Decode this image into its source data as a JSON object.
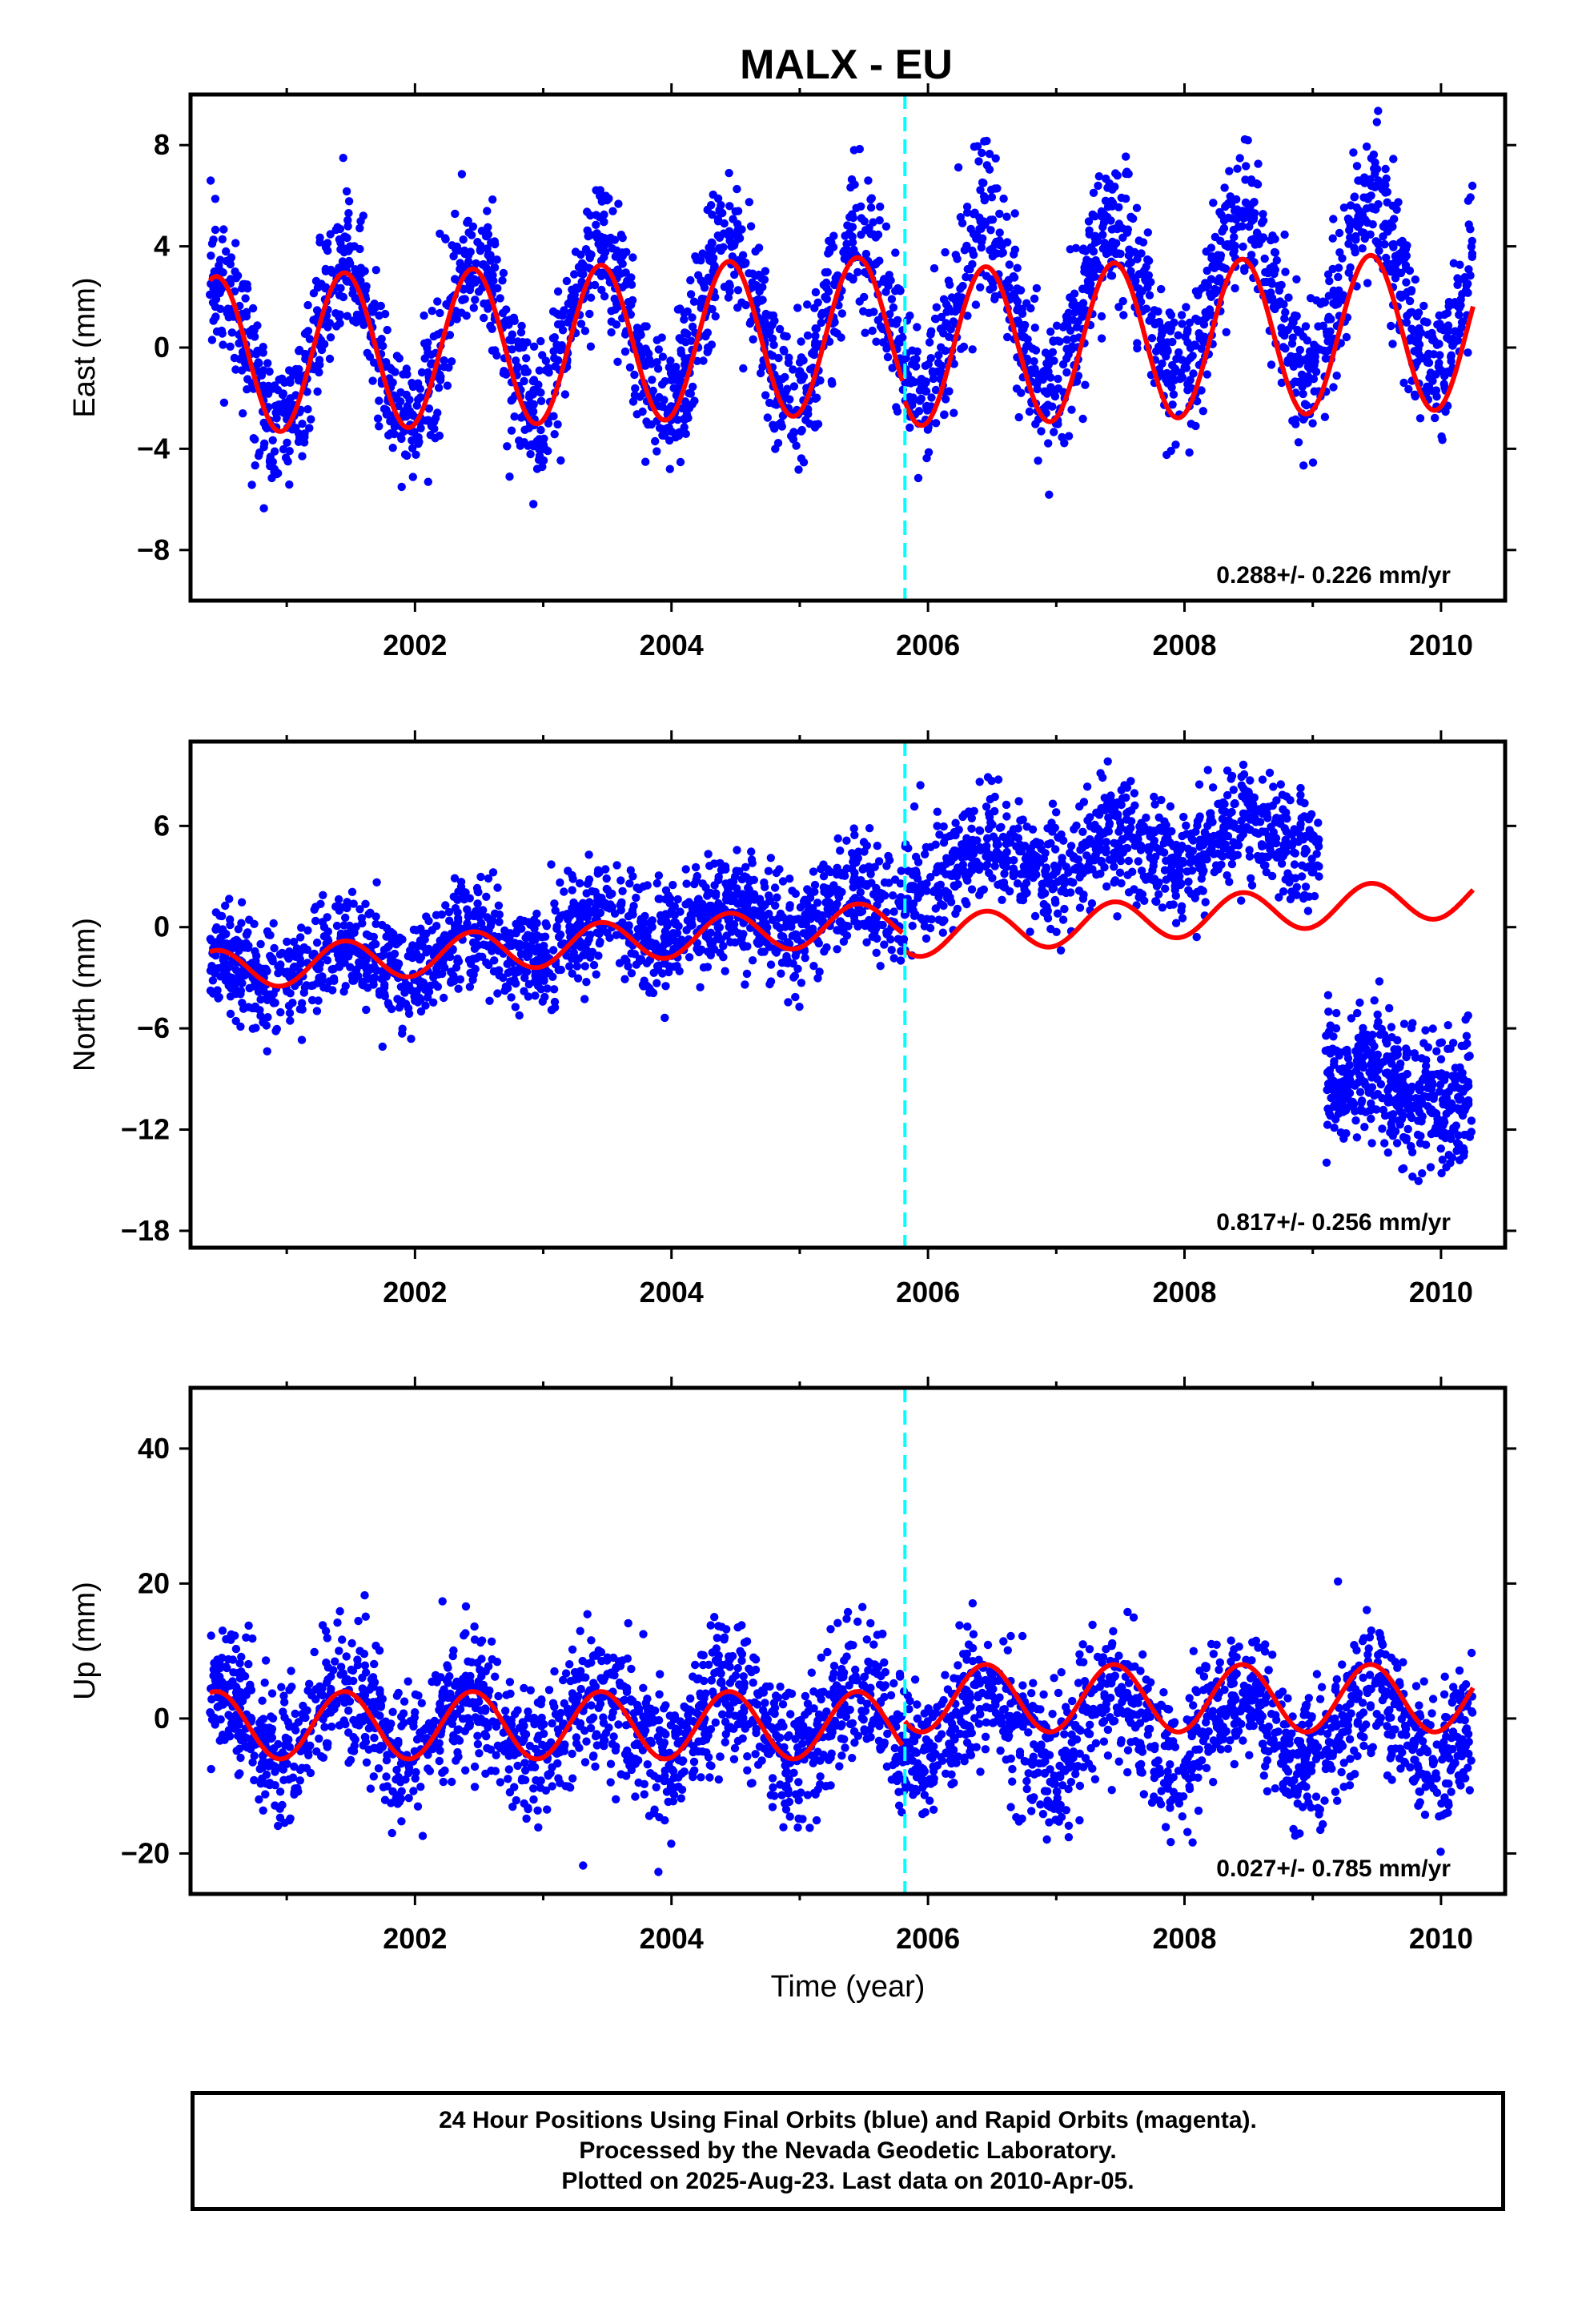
{
  "title": "MALX - EU",
  "colors": {
    "points": "#0000ff",
    "model": "#ff0000",
    "event": "#00ffff",
    "frame": "#000000"
  },
  "chart_data": [
    {
      "type": "scatter",
      "name": "east",
      "ylabel": "East (mm)",
      "xlabel": "",
      "xlim": [
        2000.25,
        2010.5
      ],
      "ylim": [
        -10,
        10
      ],
      "yticks": [
        -8,
        -4,
        0,
        4,
        8
      ],
      "xticks": [
        2002,
        2004,
        2006,
        2008,
        2010
      ],
      "rate": "0.288+/- 0.226 mm/yr",
      "event_line_x": 2005.82,
      "series": [
        {
          "kind": "points",
          "x_start": 2000.4,
          "x_end": 2010.25,
          "seasonal_amp": 3.2,
          "trend_at_start": -0.3,
          "trend_per_yr": 0.29,
          "scatter_sd": 1.4,
          "n": 2900
        },
        {
          "kind": "model_line",
          "segments": [
            {
              "x_start": 2000.4,
              "x_end": 2005.8,
              "seasonal_amp": 3.1,
              "trend_at_start": -0.3,
              "trend_per_yr": 0.15
            },
            {
              "x_start": 2005.82,
              "x_end": 2010.25,
              "seasonal_amp": 3.1,
              "trend_at_start": 0.0,
              "trend_per_yr": 0.15
            }
          ]
        }
      ]
    },
    {
      "type": "scatter",
      "name": "north",
      "ylabel": "North (mm)",
      "xlabel": "",
      "xlim": [
        2000.25,
        2010.5
      ],
      "ylim": [
        -19,
        11
      ],
      "yticks": [
        -18,
        -12,
        -6,
        0,
        6
      ],
      "xticks": [
        2002,
        2004,
        2006,
        2008,
        2010
      ],
      "rate": "0.817+/- 0.256 mm/yr",
      "event_line_x": 2005.82,
      "series": [
        {
          "kind": "points",
          "x_start": 2000.4,
          "x_end": 2009.05,
          "seasonal_amp": 1.0,
          "trend_at_start": -2.8,
          "trend_per_yr": 0.75,
          "step_at": 2005.82,
          "step_size": 2.0,
          "scatter_sd": 1.6,
          "n": 2600
        },
        {
          "kind": "points",
          "x_start": 2009.1,
          "x_end": 2010.25,
          "seasonal_amp": 0.5,
          "trend_at_start": -8.5,
          "trend_per_yr": -1.8,
          "scatter_sd": 2.0,
          "n": 450
        },
        {
          "kind": "model_line",
          "segments": [
            {
              "x_start": 2000.4,
              "x_end": 2005.8,
              "seasonal_amp": 1.2,
              "trend_at_start": -2.6,
              "trend_per_yr": 0.55
            },
            {
              "x_start": 2005.82,
              "x_end": 2010.25,
              "seasonal_amp": 1.2,
              "trend_at_start": -0.6,
              "trend_per_yr": 0.55
            }
          ]
        }
      ]
    },
    {
      "type": "scatter",
      "name": "up",
      "ylabel": "Up (mm)",
      "xlabel": "Time (year)",
      "xlim": [
        2000.25,
        2010.5
      ],
      "ylim": [
        -26,
        49
      ],
      "yticks": [
        -20,
        0,
        20,
        40
      ],
      "xticks": [
        2002,
        2004,
        2006,
        2008,
        2010
      ],
      "rate": "0.027+/- 0.785 mm/yr",
      "event_line_x": 2005.82,
      "series": [
        {
          "kind": "points",
          "x_start": 2000.4,
          "x_end": 2010.25,
          "seasonal_amp": 5.0,
          "trend_at_start": -1.0,
          "trend_per_yr": 0.0,
          "scatter_sd": 5.0,
          "n": 2900
        },
        {
          "kind": "model_line",
          "segments": [
            {
              "x_start": 2000.4,
              "x_end": 2005.8,
              "seasonal_amp": 5.0,
              "trend_at_start": -1.0,
              "trend_per_yr": 0.0
            },
            {
              "x_start": 2005.82,
              "x_end": 2010.25,
              "seasonal_amp": 5.0,
              "trend_at_start": 3.0,
              "trend_per_yr": 0.0
            }
          ]
        }
      ]
    }
  ],
  "footer": {
    "line1": "24 Hour Positions Using Final Orbits (blue) and Rapid Orbits (magenta).",
    "line2": "Processed by the Nevada Geodetic Laboratory.",
    "line3": "Plotted on 2025-Aug-23. Last data on 2010-Apr-05."
  }
}
